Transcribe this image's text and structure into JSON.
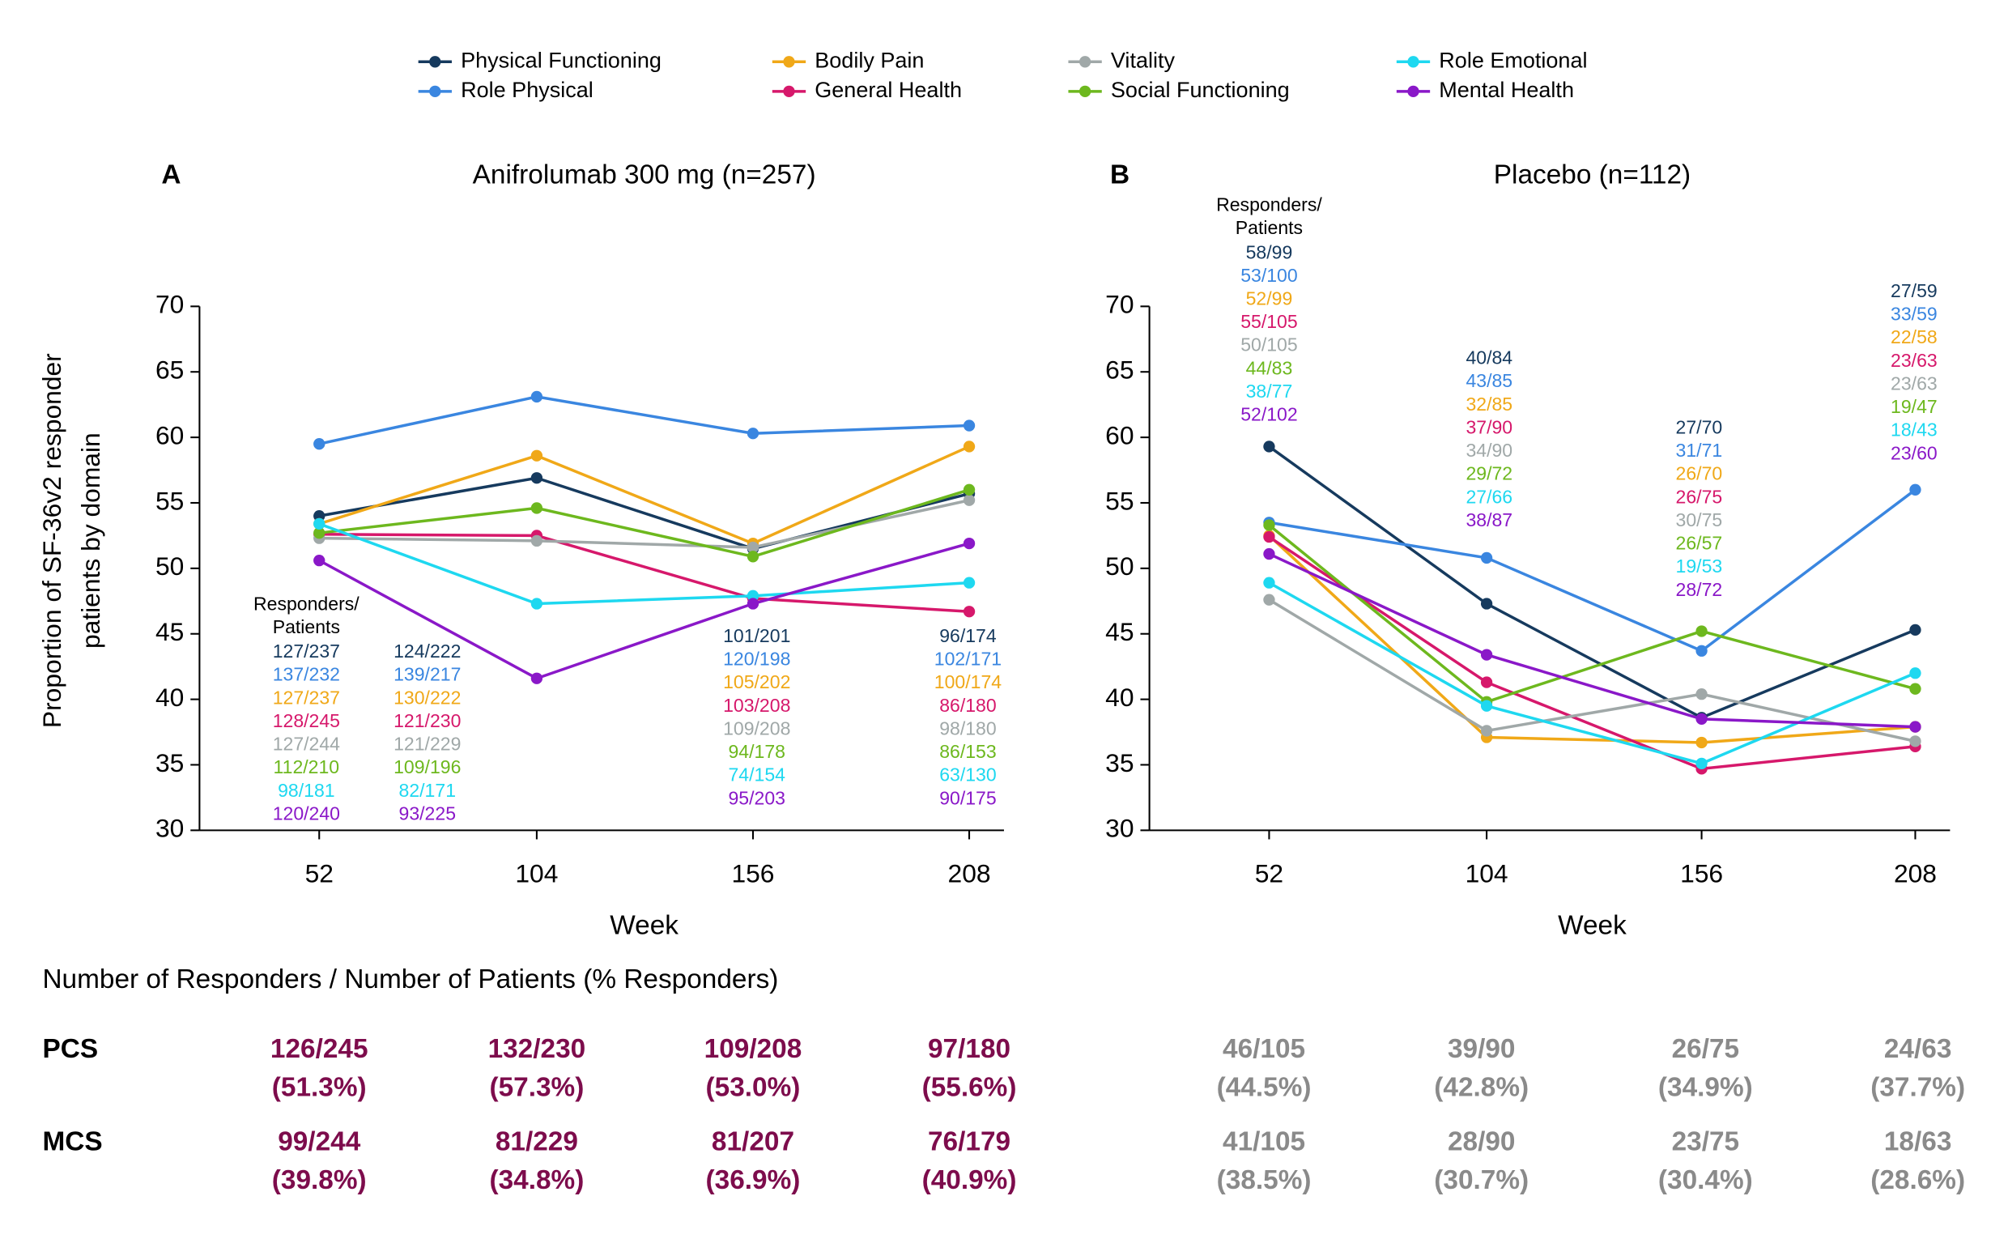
{
  "chart_data": [
    {
      "type": "line",
      "panel_label": "A",
      "title": "Anifrolumab 300 mg (n=257)",
      "ylabel": [
        "Proportion of SF-36v2 responder",
        "patients by domain"
      ],
      "xlabel": "Week",
      "categories": [
        "52",
        "104",
        "156",
        "208"
      ],
      "ylim": [
        30,
        70
      ],
      "yticks": [
        30,
        35,
        40,
        45,
        50,
        55,
        60,
        65,
        70
      ],
      "count_header": [
        "Responders/",
        "Patients"
      ],
      "series": [
        {
          "name": "Physical Functioning",
          "color": "#163a5e",
          "values": [
            54.0,
            56.9,
            51.5,
            55.7
          ],
          "counts": [
            "127/237",
            "124/222",
            "101/201",
            "96/174"
          ]
        },
        {
          "name": "Role Physical",
          "color": "#3a86e0",
          "values": [
            59.5,
            63.1,
            60.3,
            60.9
          ],
          "counts": [
            "137/232",
            "139/217",
            "120/198",
            "102/171"
          ]
        },
        {
          "name": "Bodily Pain",
          "color": "#f0a818",
          "values": [
            53.4,
            58.6,
            51.9,
            59.3
          ],
          "counts": [
            "127/237",
            "130/222",
            "105/202",
            "100/174"
          ]
        },
        {
          "name": "General Health",
          "color": "#d6186b",
          "values": [
            52.6,
            52.5,
            47.7,
            46.7
          ],
          "counts": [
            "128/245",
            "121/230",
            "103/208",
            "86/180"
          ]
        },
        {
          "name": "Vitality",
          "color": "#a0a8a8",
          "values": [
            52.3,
            52.1,
            51.6,
            55.2
          ],
          "counts": [
            "127/244",
            "121/229",
            "109/208",
            "98/180"
          ]
        },
        {
          "name": "Social Functioning",
          "color": "#6db81e",
          "values": [
            52.7,
            54.6,
            50.9,
            56.0
          ],
          "counts": [
            "112/210",
            "109/196",
            "94/178",
            "86/153"
          ]
        },
        {
          "name": "Role Emotional",
          "color": "#1ed8f0",
          "values": [
            53.4,
            47.3,
            47.9,
            48.9
          ],
          "counts": [
            "98/181",
            "82/171",
            "74/154",
            "63/130"
          ]
        },
        {
          "name": "Mental Health",
          "color": "#8a18c8",
          "values": [
            50.6,
            41.6,
            47.3,
            51.9
          ],
          "counts": [
            "120/240",
            "93/225",
            "95/203",
            "90/175"
          ]
        }
      ]
    },
    {
      "type": "line",
      "panel_label": "B",
      "title": "Placebo (n=112)",
      "xlabel": "Week",
      "categories": [
        "52",
        "104",
        "156",
        "208"
      ],
      "ylim": [
        30,
        70
      ],
      "yticks": [
        30,
        35,
        40,
        45,
        50,
        55,
        60,
        65,
        70
      ],
      "count_header": [
        "Responders/",
        "Patients"
      ],
      "series": [
        {
          "color": "#163a5e",
          "values": [
            59.3,
            47.3,
            38.6,
            45.3
          ],
          "counts": [
            "58/99",
            "40/84",
            "27/70",
            "27/59"
          ]
        },
        {
          "color": "#3a86e0",
          "values": [
            53.5,
            50.8,
            43.7,
            56.0
          ],
          "counts": [
            "53/100",
            "43/85",
            "31/71",
            "33/59"
          ]
        },
        {
          "color": "#f0a818",
          "values": [
            52.5,
            37.1,
            36.7,
            37.9
          ],
          "counts": [
            "52/99",
            "32/85",
            "26/70",
            "22/58"
          ]
        },
        {
          "color": "#d6186b",
          "values": [
            52.4,
            41.3,
            34.7,
            36.4
          ],
          "counts": [
            "55/105",
            "37/90",
            "26/75",
            "23/63"
          ]
        },
        {
          "color": "#a0a8a8",
          "values": [
            47.6,
            37.6,
            40.4,
            36.8
          ],
          "counts": [
            "50/105",
            "34/90",
            "30/75",
            "23/63"
          ]
        },
        {
          "color": "#6db81e",
          "values": [
            53.3,
            39.8,
            45.2,
            40.8
          ],
          "counts": [
            "44/83",
            "29/72",
            "26/57",
            "19/47"
          ]
        },
        {
          "color": "#1ed8f0",
          "values": [
            48.9,
            39.5,
            35.1,
            42.0
          ],
          "counts": [
            "38/77",
            "27/66",
            "19/53",
            "18/43"
          ]
        },
        {
          "color": "#8a18c8",
          "values": [
            51.1,
            43.4,
            38.5,
            37.9
          ],
          "counts": [
            "52/102",
            "38/87",
            "28/72",
            "23/60"
          ]
        }
      ]
    }
  ],
  "table": {
    "title": "Number of Responders / Number of Patients (% Responders)",
    "rows": [
      {
        "label": "PCS",
        "anifrolumab": [
          [
            "126/245",
            "(51.3%)"
          ],
          [
            "132/230",
            "(57.3%)"
          ],
          [
            "109/208",
            "(53.0%)"
          ],
          [
            "97/180",
            "(55.6%)"
          ]
        ],
        "placebo": [
          [
            "46/105",
            "(44.5%)"
          ],
          [
            "39/90",
            "(42.8%)"
          ],
          [
            "26/75",
            "(34.9%)"
          ],
          [
            "24/63",
            "(37.7%)"
          ]
        ]
      },
      {
        "label": "MCS",
        "anifrolumab": [
          [
            "99/244",
            "(39.8%)"
          ],
          [
            "81/229",
            "(34.8%)"
          ],
          [
            "81/207",
            "(36.9%)"
          ],
          [
            "76/179",
            "(40.9%)"
          ]
        ],
        "placebo": [
          [
            "41/105",
            "(38.5%)"
          ],
          [
            "28/90",
            "(30.7%)"
          ],
          [
            "23/75",
            "(30.4%)"
          ],
          [
            "18/63",
            "(28.6%)"
          ]
        ]
      }
    ]
  }
}
